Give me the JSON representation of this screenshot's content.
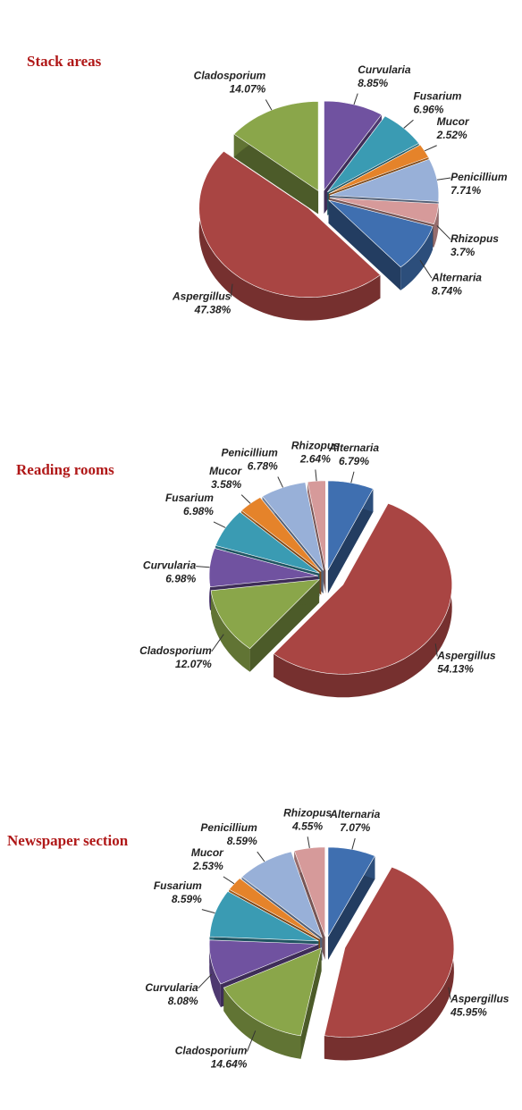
{
  "chart_data": [
    {
      "type": "pie",
      "title": "Stack areas",
      "categories": [
        "Curvularia",
        "Fusarium",
        "Mucor",
        "Penicillium",
        "Rhizopus",
        "Alternaria",
        "Aspergillus",
        "Cladosporium"
      ],
      "values": [
        8.85,
        6.96,
        2.52,
        7.71,
        3.7,
        8.74,
        47.38,
        14.07
      ],
      "value_labels": [
        "8.85%",
        "6.96%",
        "2.52%",
        "7.71%",
        "3.7%",
        "8.74%",
        "47.38%",
        "14.07%"
      ],
      "colors": [
        "#7052a0",
        "#3a9bb3",
        "#e5832a",
        "#98b0d8",
        "#d69a9a",
        "#3f6fb0",
        "#a94543",
        "#8aa64a"
      ]
    },
    {
      "type": "pie",
      "title": "Reading rooms",
      "categories": [
        "Alternaria",
        "Aspergillus",
        "Cladosporium",
        "Curvularia",
        "Fusarium",
        "Mucor",
        "Penicillium",
        "Rhizopus"
      ],
      "values": [
        6.79,
        54.13,
        12.07,
        6.98,
        6.98,
        3.58,
        6.78,
        2.64
      ],
      "value_labels": [
        "6.79%",
        "54.13%",
        "12.07%",
        "6.98%",
        "6.98%",
        "3.58%",
        "6.78%",
        "2.64%"
      ],
      "colors": [
        "#3f6fb0",
        "#a94543",
        "#8aa64a",
        "#7052a0",
        "#3a9bb3",
        "#e5832a",
        "#98b0d8",
        "#d69a9a"
      ]
    },
    {
      "type": "pie",
      "title": "Newspaper section",
      "categories": [
        "Alternaria",
        "Aspergillus",
        "Cladosporium",
        "Curvularia",
        "Fusarium",
        "Mucor",
        "Penicillium",
        "Rhizopus"
      ],
      "values": [
        7.07,
        45.95,
        14.64,
        8.08,
        8.59,
        2.53,
        8.59,
        4.55
      ],
      "value_labels": [
        "7.07%",
        "45.95%",
        "14.64%",
        "8.08%",
        "8.59%",
        "2.53%",
        "8.59%",
        "4.55%"
      ],
      "colors": [
        "#3f6fb0",
        "#a94543",
        "#8aa64a",
        "#7052a0",
        "#3a9bb3",
        "#e5832a",
        "#98b0d8",
        "#d69a9a"
      ]
    }
  ]
}
